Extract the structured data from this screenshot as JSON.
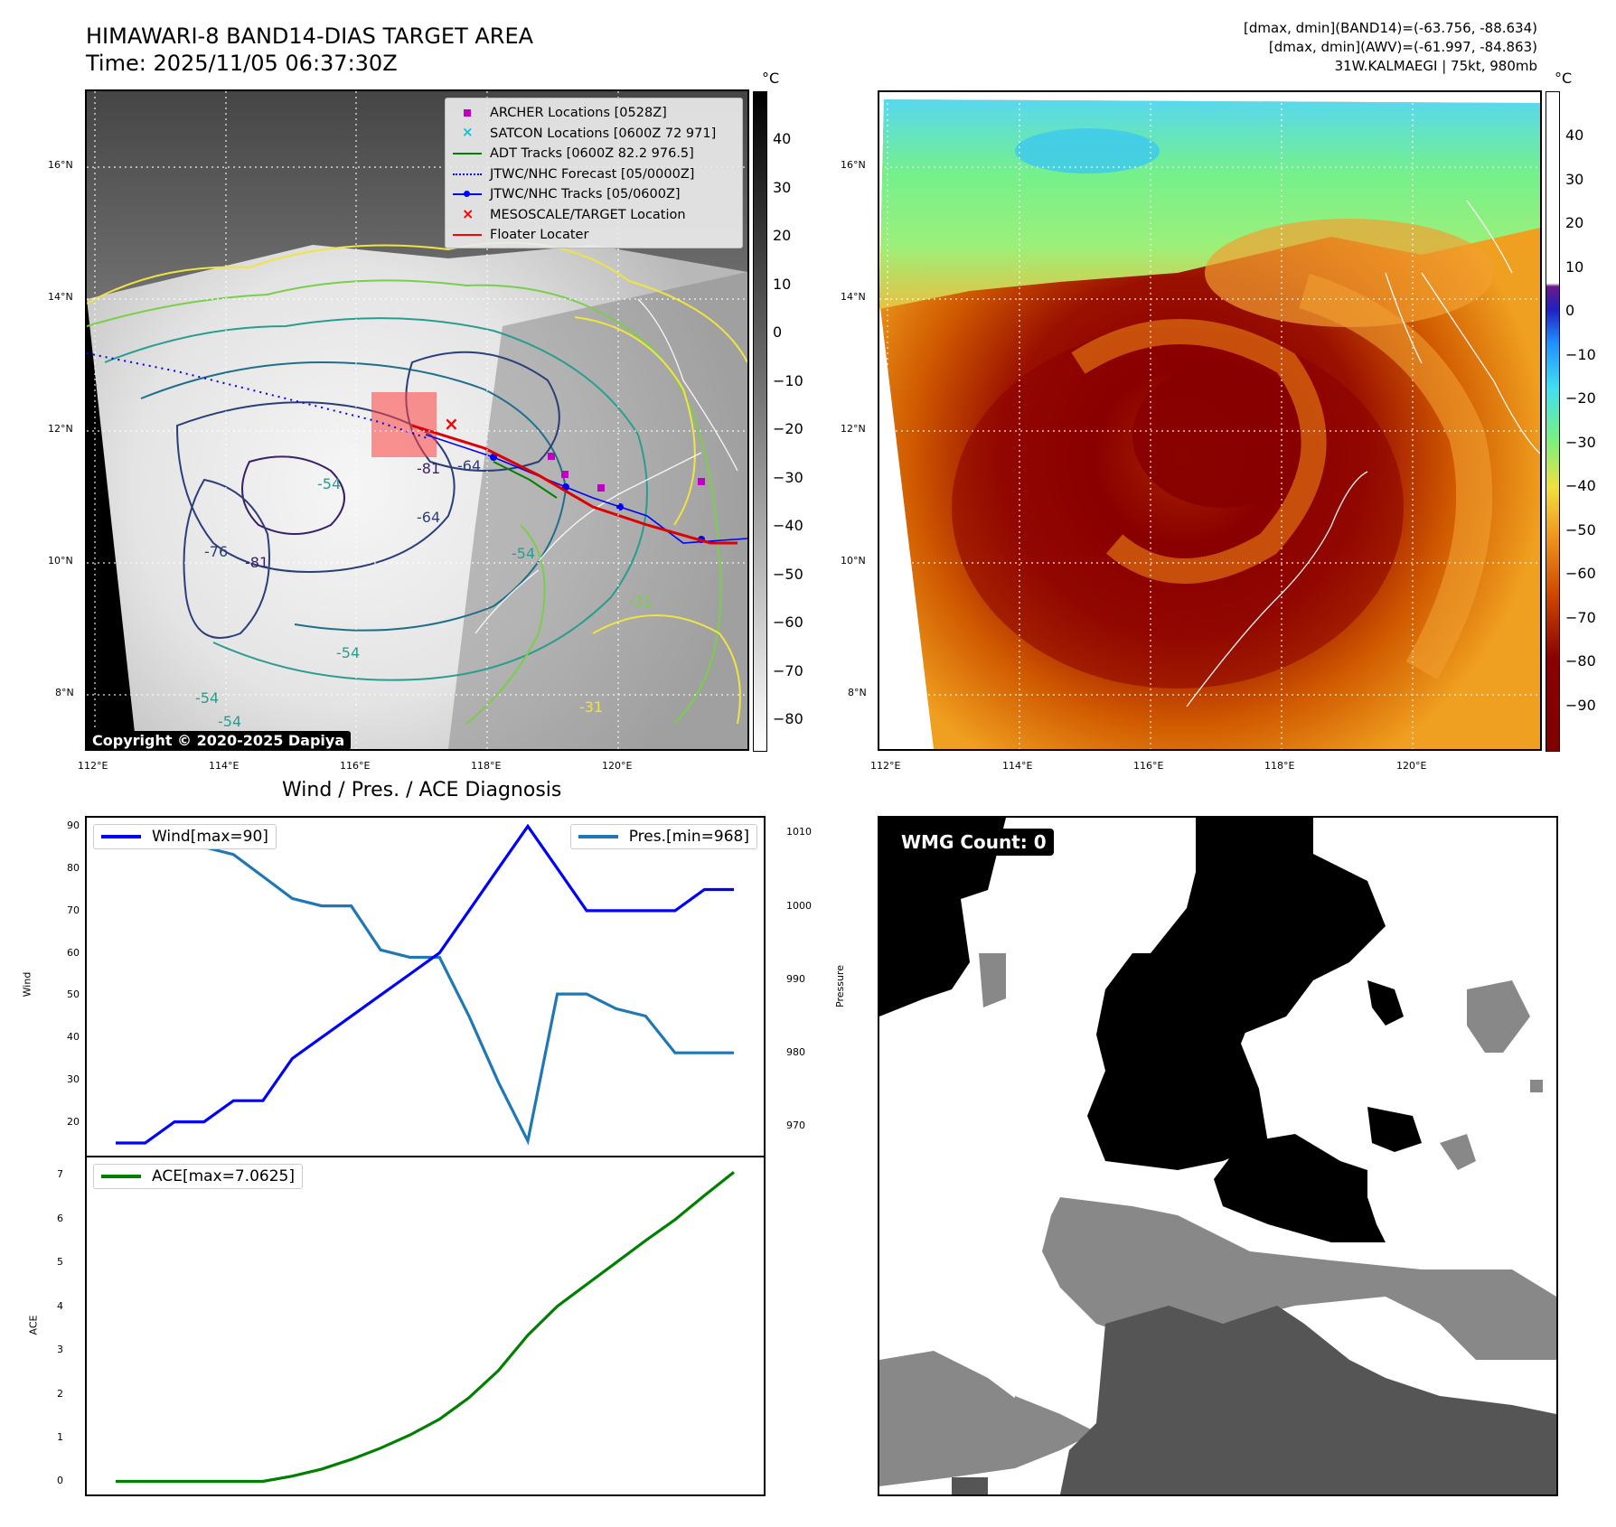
{
  "header": {
    "title_line1": "HIMAWARI-8 BAND14-DIAS TARGET AREA",
    "title_line2": "Time: 2025/11/05 06:37:30Z",
    "info_line1": "[dmax, dmin](BAND14)=(-63.756, -88.634)",
    "info_line2": "[dmax, dmin](AWV)=(-61.997, -84.863)",
    "info_line3": "31W.KALMAEGI | 75kt, 980mb"
  },
  "map_axes": {
    "lat_ticks": [
      "16°N",
      "14°N",
      "12°N",
      "10°N",
      "8°N"
    ],
    "lon_ticks": [
      "112°E",
      "114°E",
      "116°E",
      "118°E",
      "120°E"
    ],
    "colorbar_unit": "°C"
  },
  "ir_panel": {
    "colorbar_ticks": [
      "40",
      "30",
      "20",
      "10",
      "0",
      "−10",
      "−20",
      "−30",
      "−40",
      "−50",
      "−60",
      "−70",
      "−80"
    ],
    "contour_labels": [
      "-54",
      "-64",
      "-76",
      "-81",
      "-31",
      "-81",
      "-54",
      "-54",
      "-54",
      "-64",
      "-54",
      "-31"
    ],
    "legend": [
      {
        "label": "ARCHER Locations [0528Z]",
        "marker": "square",
        "color": "#c000c0"
      },
      {
        "label": "SATCON Locations [0600Z 72 971]",
        "marker": "x",
        "color": "#17becf"
      },
      {
        "label": "ADT Tracks [0600Z 82.2 976.5]",
        "marker": "line",
        "color": "#008000"
      },
      {
        "label": "JTWC/NHC Forecast [05/0000Z]",
        "marker": "dotted",
        "color": "#0000ff"
      },
      {
        "label": "JTWC/NHC Tracks [05/0600Z]",
        "marker": "line-dot",
        "color": "#0000ff"
      },
      {
        "label": "MESOSCALE/TARGET Location",
        "marker": "x",
        "color": "#ff0000"
      },
      {
        "label": "Floater Locater",
        "marker": "line",
        "color": "#ff0000"
      }
    ],
    "copyright": "Copyright © 2020-2025 Dapiya"
  },
  "awv_panel": {
    "colorbar_ticks": [
      "40",
      "30",
      "20",
      "10",
      "0",
      "−10",
      "−20",
      "−30",
      "−40",
      "−50",
      "−60",
      "−70",
      "−80",
      "−90"
    ]
  },
  "diagnosis": {
    "title": "Wind / Pres. / ACE Diagnosis",
    "wind_ylabel": "Wind",
    "pres_ylabel": "Pressure",
    "ace_ylabel": "ACE",
    "wind_legend": "Wind[max=90]",
    "pres_legend": "Pres.[min=968]",
    "ace_legend": "ACE[max=7.0625]"
  },
  "wmg": {
    "badge": "WMG Count: 0"
  },
  "colors": {
    "wind": "#0000ff",
    "pressure": "#1f77b4",
    "ace": "#008000"
  },
  "chart_data": [
    {
      "type": "line",
      "title": "",
      "xlabel": "",
      "ylabel": "Wind",
      "ylim": [
        12,
        92
      ],
      "yticks": [
        20,
        30,
        40,
        50,
        60,
        70,
        80,
        90
      ],
      "series": [
        {
          "name": "Wind[max=90]",
          "axis": "left",
          "values": [
            15,
            15,
            20,
            20,
            25,
            25,
            35,
            40,
            45,
            50,
            55,
            60,
            70,
            80,
            90,
            80,
            70,
            70,
            70,
            70,
            75,
            75
          ]
        }
      ]
    },
    {
      "type": "line",
      "title": "",
      "xlabel": "",
      "ylabel": "Pressure",
      "ylim": [
        966,
        1012
      ],
      "yticks": [
        970,
        980,
        990,
        1000,
        1010
      ],
      "series": [
        {
          "name": "Pres.[min=968]",
          "axis": "right",
          "values": [
            1010,
            1008,
            1008,
            1008,
            1007,
            1004,
            1001,
            1000,
            1000,
            994,
            993,
            993,
            985,
            976,
            968,
            988,
            988,
            986,
            985,
            980,
            980,
            980
          ]
        }
      ]
    },
    {
      "type": "line",
      "title": "",
      "xlabel": "",
      "ylabel": "ACE",
      "ylim": [
        -0.3,
        7.4
      ],
      "yticks": [
        0,
        1,
        2,
        3,
        4,
        5,
        6,
        7
      ],
      "series": [
        {
          "name": "ACE[max=7.0625]",
          "values": [
            0,
            0,
            0,
            0,
            0,
            0,
            0.12,
            0.28,
            0.5,
            0.76,
            1.06,
            1.42,
            1.91,
            2.53,
            3.34,
            4.0,
            4.5,
            5.0,
            5.5,
            5.98,
            6.53,
            7.0625
          ]
        }
      ]
    }
  ]
}
